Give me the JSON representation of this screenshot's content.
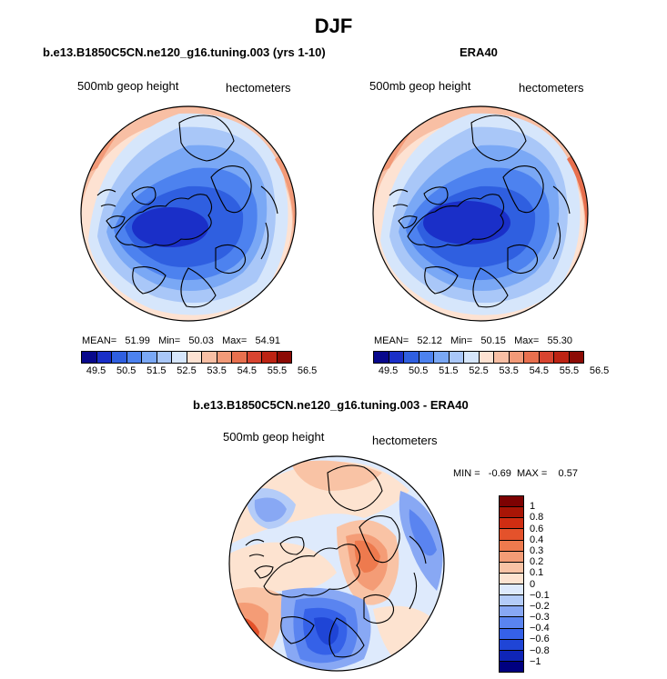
{
  "figure": {
    "season_title": "DJF",
    "panel_left_title": "b.e13.B1850C5CN.ne120_g16.tuning.003 (yrs 1-10)",
    "panel_right_title": "ERA40",
    "panel_diff_title": "b.e13.B1850C5CN.ne120_g16.tuning.003 - ERA40",
    "variable_label": "500mb geop height",
    "units_label": "hectometers"
  },
  "stats": {
    "left": "MEAN=   51.99   Min=   50.03   Max=   54.91",
    "right": "MEAN=   52.12   Min=   50.15   Max=   55.30",
    "diff": "MIN =   -0.69  MAX =    0.57"
  },
  "colors": {
    "abs_scale": [
      "#08088c",
      "#1a2fc8",
      "#2f5fe0",
      "#4d82ef",
      "#7aa8f5",
      "#a9c7f8",
      "#d6e6fb",
      "#fde2d2",
      "#f8bfa4",
      "#f29a78",
      "#e8704e",
      "#d84430",
      "#bd2313",
      "#8c0a04"
    ],
    "diff_scale": [
      "#000080",
      "#0f25b8",
      "#1f45d6",
      "#3561e8",
      "#5a84f0",
      "#88a8f4",
      "#b4ccf8",
      "#deeafc",
      "#fde3d0",
      "#f9c3a5",
      "#f49c76",
      "#ee7a4e",
      "#e4522b",
      "#cf2d12",
      "#a81506",
      "#7d0202"
    ],
    "coast": "#000000"
  },
  "chart_data": [
    {
      "type": "heatmap",
      "title": "b.e13.B1850C5CN.ne120_g16.tuning.003 (yrs 1-10)",
      "variable": "500mb geop height",
      "units": "hectometers",
      "projection": "polar stereographic (north pole)",
      "colorbar_ticks": [
        "49.5",
        "50.5",
        "51.5",
        "52.5",
        "53.5",
        "54.5",
        "55.5",
        "56.5"
      ],
      "levels": [
        49.5,
        50,
        50.5,
        51,
        51.5,
        52,
        52.5,
        53,
        53.5,
        54,
        54.5,
        55,
        55.5,
        56,
        56.5
      ],
      "mean": 51.99,
      "min": 50.03,
      "max": 54.91
    },
    {
      "type": "heatmap",
      "title": "ERA40",
      "variable": "500mb geop height",
      "units": "hectometers",
      "projection": "polar stereographic (north pole)",
      "colorbar_ticks": [
        "49.5",
        "50.5",
        "51.5",
        "52.5",
        "53.5",
        "54.5",
        "55.5",
        "56.5"
      ],
      "levels": [
        49.5,
        50,
        50.5,
        51,
        51.5,
        52,
        52.5,
        53,
        53.5,
        54,
        54.5,
        55,
        55.5,
        56,
        56.5
      ],
      "mean": 52.12,
      "min": 50.15,
      "max": 55.3
    },
    {
      "type": "heatmap",
      "title": "b.e13.B1850C5CN.ne120_g16.tuning.003 - ERA40",
      "variable": "500mb geop height",
      "units": "hectometers",
      "projection": "polar stereographic (north pole)",
      "colorbar_ticks": [
        "1",
        "0.8",
        "0.6",
        "0.4",
        "0.3",
        "0.2",
        "0.1",
        "0",
        "-0.1",
        "-0.2",
        "-0.3",
        "-0.4",
        "-0.6",
        "-0.8",
        "-1"
      ],
      "min": -0.69,
      "max": 0.57
    }
  ]
}
